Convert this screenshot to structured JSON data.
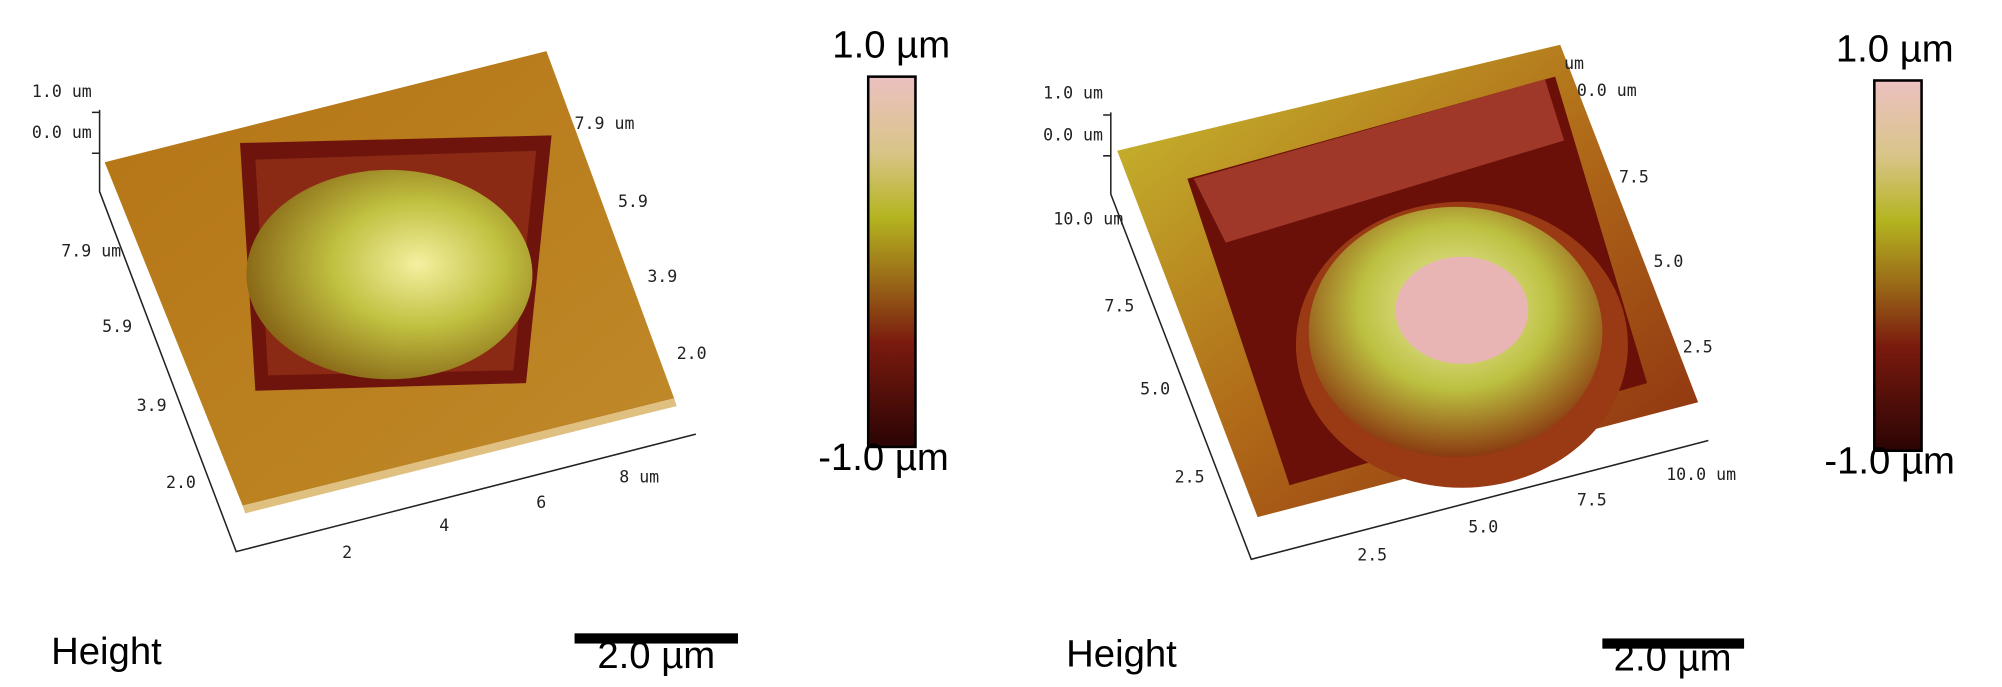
{
  "panels": [
    {
      "z_axis": [
        "1.0 um",
        "0.0 um"
      ],
      "left_axis": [
        "7.9 um",
        "5.9",
        "3.9",
        "2.0"
      ],
      "right_axis": [
        "7.9 um",
        "5.9",
        "3.9",
        "2.0"
      ],
      "bottom_axis": [
        "2",
        "4",
        "6",
        "8 um"
      ],
      "colorbar": {
        "max": "1.0 µm",
        "min": "-1.0 µm"
      },
      "caption": "Height",
      "scale_bar": "2.0 µm"
    },
    {
      "z_axis": [
        "1.0 um",
        "0.0 um"
      ],
      "left_axis": [
        "10.0 um",
        "7.5",
        "5.0",
        "2.5"
      ],
      "right_axis": [
        "um",
        "0.0 um",
        "7.5",
        "5.0",
        "2.5"
      ],
      "bottom_axis": [
        "2.5",
        "5.0",
        "7.5",
        "10.0 um"
      ],
      "colorbar": {
        "max": "1.0 µm",
        "min": "-1.0 µm"
      },
      "caption": "Height",
      "scale_bar": "2.0 µm"
    }
  ]
}
